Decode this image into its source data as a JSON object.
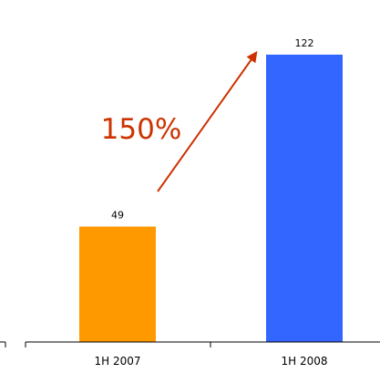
{
  "chart_data": {
    "type": "bar",
    "categories": [
      "1H 2007",
      "1H 2008"
    ],
    "values": [
      49,
      122
    ],
    "data_labels": [
      "49",
      "122"
    ],
    "bar_colors": [
      "#ff9900",
      "#3366ff"
    ],
    "ylim": [
      0,
      139
    ],
    "grid": false,
    "legend": "none",
    "annotation": {
      "text": "150%",
      "color": "#cc3300",
      "arrow_from": "1H 2007",
      "arrow_to": "1H 2008"
    }
  }
}
